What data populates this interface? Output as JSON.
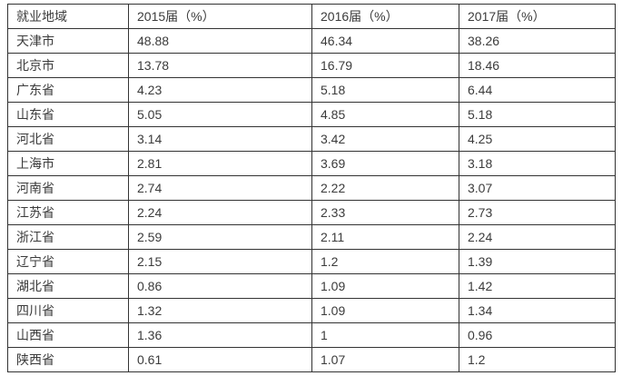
{
  "page": {
    "background": "#ffffff",
    "border_color": "#333333",
    "text_color": "#3b3b3b"
  },
  "chart_data": {
    "type": "table",
    "headers": [
      "就业地域",
      "2015届（%）",
      "2016届（%）",
      "2017届（%）"
    ],
    "rows": [
      [
        "天津市",
        "48.88",
        "46.34",
        "38.26"
      ],
      [
        "北京市",
        "13.78",
        "16.79",
        "18.46"
      ],
      [
        "广东省",
        "4.23",
        "5.18",
        "6.44"
      ],
      [
        "山东省",
        "5.05",
        "4.85",
        "5.18"
      ],
      [
        "河北省",
        "3.14",
        "3.42",
        "4.25"
      ],
      [
        "上海市",
        "2.81",
        "3.69",
        "3.18"
      ],
      [
        "河南省",
        "2.74",
        "2.22",
        "3.07"
      ],
      [
        "江苏省",
        "2.24",
        "2.33",
        "2.73"
      ],
      [
        "浙江省",
        "2.59",
        "2.11",
        "2.24"
      ],
      [
        "辽宁省",
        "2.15",
        "1.2",
        "1.39"
      ],
      [
        "湖北省",
        "0.86",
        "1.09",
        "1.42"
      ],
      [
        "四川省",
        "1.32",
        "1.09",
        "1.34"
      ],
      [
        "山西省",
        "1.36",
        "1",
        "0.96"
      ],
      [
        "陕西省",
        "0.61",
        "1.07",
        "1.2"
      ]
    ]
  }
}
